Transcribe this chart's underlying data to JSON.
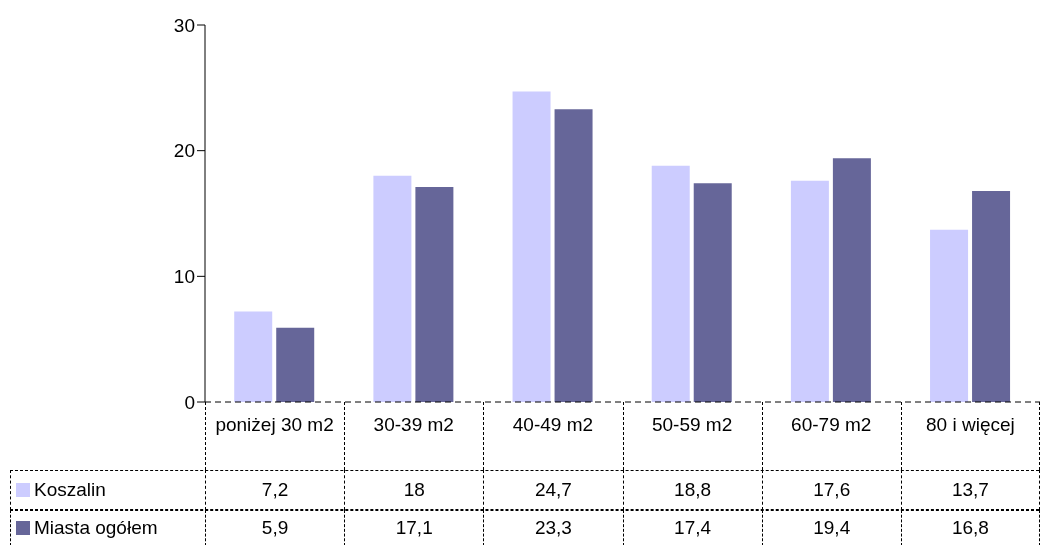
{
  "chart_data": {
    "type": "bar",
    "categories": [
      "poniżej 30 m2",
      "30-39 m2",
      "40-49 m2",
      "50-59 m2",
      "60-79 m2",
      "80 i więcej"
    ],
    "series": [
      {
        "name": "Koszalin",
        "color": "#ccccff",
        "values": [
          7.2,
          18,
          24.7,
          18.8,
          17.6,
          13.7
        ],
        "value_labels": [
          "7,2",
          "18",
          "24,7",
          "18,8",
          "17,6",
          "13,7"
        ]
      },
      {
        "name": "Miasta ogółem",
        "color": "#666699",
        "values": [
          5.9,
          17.1,
          23.3,
          17.4,
          19.4,
          16.8
        ],
        "value_labels": [
          "5,9",
          "17,1",
          "23,3",
          "17,4",
          "19,4",
          "16,8"
        ]
      }
    ],
    "ylim": [
      0,
      30
    ],
    "yticks": [
      0,
      10,
      20,
      30
    ],
    "legend": "bottom"
  }
}
